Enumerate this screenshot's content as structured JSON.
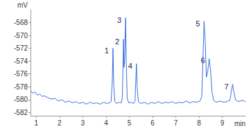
{
  "chart_data": {
    "type": "line",
    "x_label": "min",
    "y_label": "mV",
    "color": "#3a6fe0",
    "grid": false,
    "xlim": [
      0.75,
      10
    ],
    "xticks": [
      1,
      2,
      3,
      4,
      5,
      6,
      7,
      8,
      9
    ],
    "ylim": [
      -582.5,
      -566
    ],
    "yticks": [
      -582,
      -580,
      -578,
      -576,
      -574,
      -572,
      -570,
      -568
    ],
    "x": [
      0.75,
      0.85,
      0.95,
      1.05,
      1.15,
      1.25,
      1.35,
      1.5,
      1.65,
      1.8,
      1.95,
      2.1,
      2.25,
      2.4,
      2.55,
      2.7,
      2.85,
      3.0,
      3.15,
      3.3,
      3.45,
      3.6,
      3.75,
      3.9,
      4.05,
      4.15,
      4.22,
      4.27,
      4.3,
      4.33,
      4.38,
      4.45,
      4.55,
      4.65,
      4.7,
      4.73,
      4.75,
      4.77,
      4.8,
      4.84,
      4.87,
      4.91,
      4.98,
      5.08,
      5.18,
      5.25,
      5.28,
      5.31,
      5.34,
      5.39,
      5.5,
      5.65,
      5.8,
      5.95,
      6.1,
      6.25,
      6.4,
      6.55,
      6.7,
      6.85,
      7.0,
      7.15,
      7.3,
      7.45,
      7.6,
      7.75,
      7.9,
      8.05,
      8.12,
      8.17,
      8.22,
      8.27,
      8.32,
      8.38,
      8.44,
      8.5,
      8.56,
      8.63,
      8.75,
      8.9,
      9.05,
      9.2,
      9.33,
      9.4,
      9.45,
      9.5,
      9.57,
      9.7,
      9.85,
      10.0
    ],
    "values": [
      -578.6,
      -579.0,
      -578.8,
      -579.3,
      -579.1,
      -579.5,
      -579.4,
      -579.7,
      -579.9,
      -579.8,
      -580.2,
      -580.0,
      -580.4,
      -580.2,
      -580.5,
      -580.3,
      -580.6,
      -580.4,
      -580.7,
      -580.4,
      -580.6,
      -580.5,
      -580.7,
      -580.4,
      -580.6,
      -580.5,
      -580.3,
      -577.0,
      -572.0,
      -577.5,
      -580.3,
      -580.6,
      -580.4,
      -580.5,
      -579.8,
      -575.0,
      -570.6,
      -575.0,
      -574.0,
      -567.3,
      -574.0,
      -579.8,
      -580.5,
      -580.4,
      -580.6,
      -580.2,
      -577.0,
      -574.4,
      -578.0,
      -580.3,
      -580.6,
      -580.4,
      -580.7,
      -580.4,
      -580.6,
      -580.3,
      -580.6,
      -580.4,
      -580.5,
      -580.3,
      -580.6,
      -580.4,
      -580.5,
      -580.2,
      -580.5,
      -580.3,
      -580.4,
      -580.2,
      -579.5,
      -574.0,
      -567.8,
      -571.0,
      -576.5,
      -575.5,
      -573.6,
      -575.5,
      -578.8,
      -580.1,
      -580.4,
      -580.2,
      -580.4,
      -580.3,
      -580.1,
      -578.5,
      -577.6,
      -578.8,
      -580.0,
      -580.3,
      -580.1,
      -580.3
    ],
    "annotations": [
      {
        "text": "1",
        "x": 4.3,
        "y": -572.0
      },
      {
        "text": "2",
        "x": 4.75,
        "y": -570.6
      },
      {
        "text": "3",
        "x": 4.84,
        "y": -567.3
      },
      {
        "text": "4",
        "x": 5.31,
        "y": -574.4
      },
      {
        "text": "5",
        "x": 8.22,
        "y": -567.8
      },
      {
        "text": "6",
        "x": 8.44,
        "y": -573.6
      },
      {
        "text": "7",
        "x": 9.45,
        "y": -577.6
      }
    ]
  }
}
